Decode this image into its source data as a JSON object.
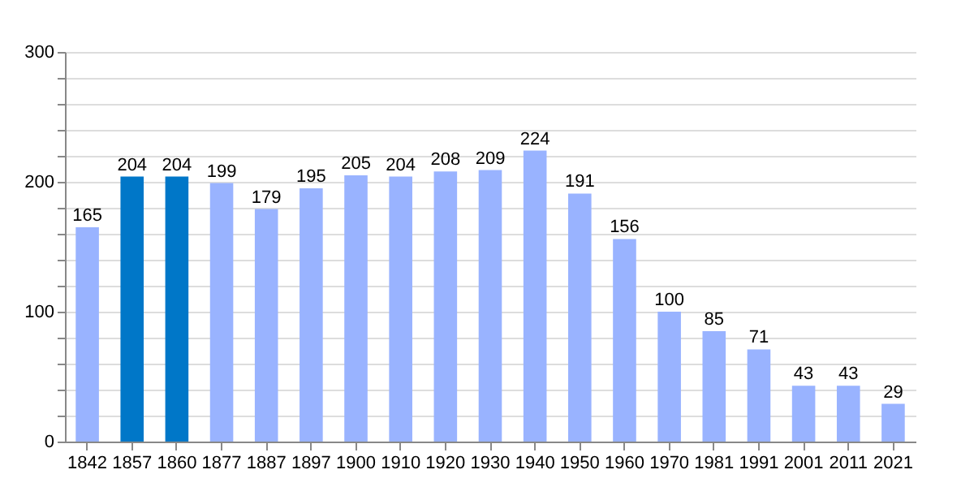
{
  "chart_data": {
    "type": "bar",
    "categories": [
      "1842",
      "1857",
      "1860",
      "1877",
      "1887",
      "1897",
      "1900",
      "1910",
      "1920",
      "1930",
      "1940",
      "1950",
      "1960",
      "1970",
      "1981",
      "1991",
      "2001",
      "2011",
      "2021"
    ],
    "values": [
      165,
      204,
      204,
      199,
      179,
      195,
      205,
      204,
      208,
      209,
      224,
      191,
      156,
      100,
      85,
      71,
      43,
      43,
      29
    ],
    "colors": [
      "#99b3ff",
      "#0077c8",
      "#0077c8",
      "#99b3ff",
      "#99b3ff",
      "#99b3ff",
      "#99b3ff",
      "#99b3ff",
      "#99b3ff",
      "#99b3ff",
      "#99b3ff",
      "#99b3ff",
      "#99b3ff",
      "#99b3ff",
      "#99b3ff",
      "#99b3ff",
      "#99b3ff",
      "#99b3ff",
      "#99b3ff"
    ],
    "ylim": [
      0,
      300
    ],
    "yticks": [
      0,
      {
        "value": 20,
        "label": null
      },
      {
        "value": 40,
        "label": null
      },
      {
        "value": 60,
        "label": null
      },
      {
        "value": 80,
        "label": null
      },
      100,
      {
        "value": 120,
        "label": null
      },
      {
        "value": 140,
        "label": null
      },
      {
        "value": 160,
        "label": null
      },
      {
        "value": 180,
        "label": null
      },
      200,
      {
        "value": 220,
        "label": null
      },
      {
        "value": 240,
        "label": null
      },
      {
        "value": 260,
        "label": null
      },
      {
        "value": 280,
        "label": null
      },
      300
    ],
    "grid": "y",
    "data_labels": true
  }
}
